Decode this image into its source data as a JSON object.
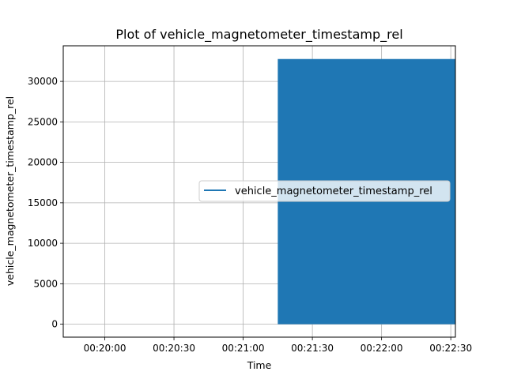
{
  "chart_data": {
    "type": "line",
    "title": "Plot of vehicle_magnetometer_timestamp_rel",
    "xlabel": "Time",
    "ylabel": "vehicle_magnetometer_timestamp_rel",
    "x_ticks": [
      "00:20:00",
      "00:20:30",
      "00:21:00",
      "00:21:30",
      "00:22:00",
      "00:22:30"
    ],
    "x_tick_values": [
      "00:20:00",
      "00:20:30",
      "00:21:00",
      "00:21:30",
      "00:22:00",
      "00:22:30"
    ],
    "y_ticks": [
      "0",
      "5000",
      "10000",
      "15000",
      "20000",
      "25000",
      "30000"
    ],
    "y_tick_values": [
      0,
      5000,
      10000,
      15000,
      20000,
      25000,
      30000
    ],
    "xlim": [
      "00:19:42",
      "00:22:32"
    ],
    "ylim": [
      -1600,
      34400
    ],
    "grid": true,
    "legend_position": "center-right",
    "series": [
      {
        "name": "vehicle_magnetometer_timestamp_rel",
        "color": "#1f77b4",
        "x_range": [
          "00:21:15",
          "00:22:32"
        ],
        "y_range": [
          0,
          32767
        ],
        "note_visual": "dense oscillation filling the band"
      }
    ]
  }
}
